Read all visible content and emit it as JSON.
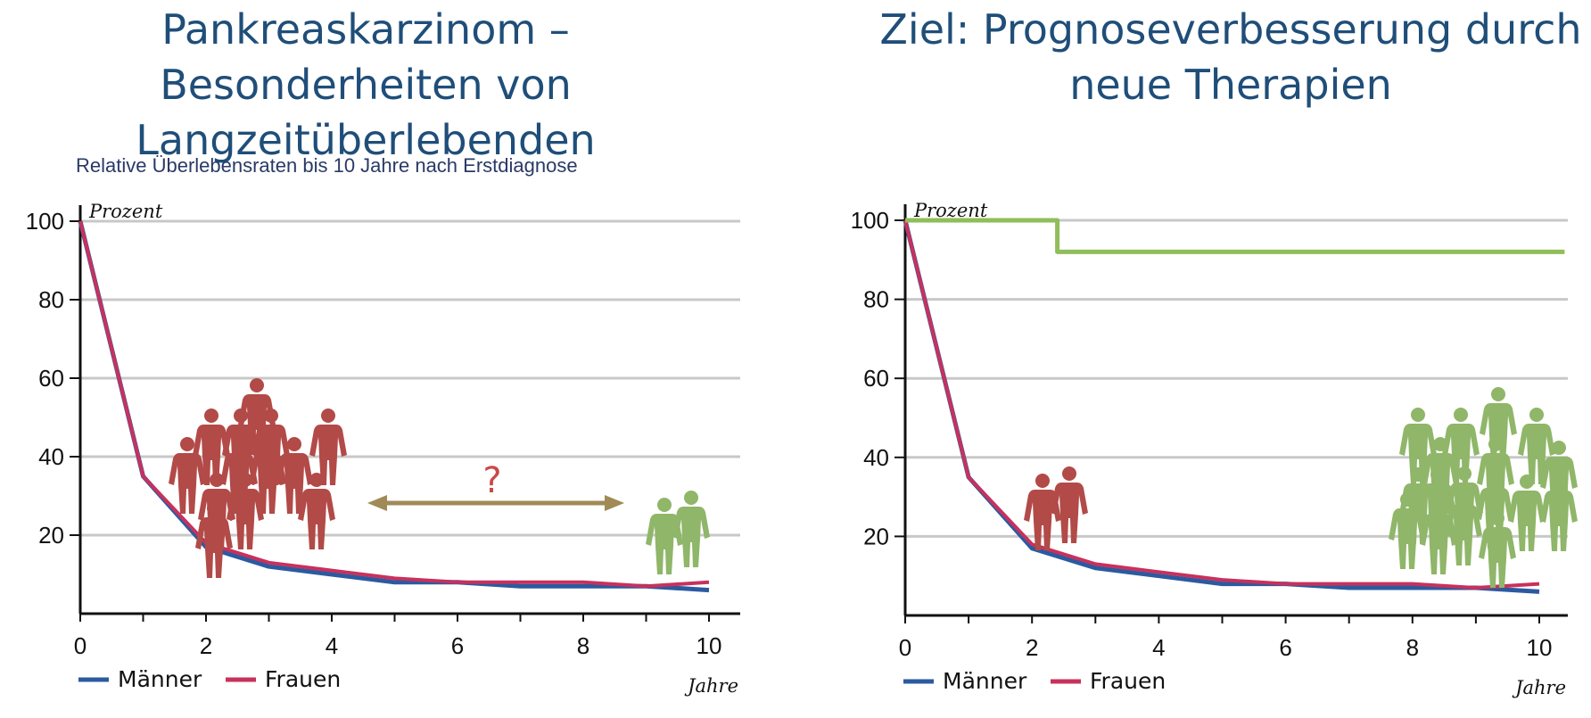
{
  "slide": {
    "left_title": "Pankreaskarzinom – Besonderheiten von Langzeitüberlebenden",
    "right_title": "Ziel: Prognoseverbesserung durch neue Therapien",
    "subtitle": "Relative Überlebensraten bis 10 Jahre nach Erstdiagnose",
    "question_mark": "?"
  },
  "colors": {
    "title": "#1f4e79",
    "maenner": "#2c5aa0",
    "frauen": "#c8315c",
    "goal": "#8fbe5a",
    "people_red": "#b24a48",
    "people_green": "#8fb669",
    "arrow": "#a08a55",
    "question": "#c84a48",
    "grid": "#c8c8c8"
  },
  "chart_data": [
    {
      "type": "line",
      "xlabel": "Jahre",
      "ylabel": "Prozent",
      "xlim": [
        0,
        10
      ],
      "ylim": [
        0,
        100
      ],
      "xticks": [
        "0",
        "2",
        "4",
        "6",
        "8",
        "10"
      ],
      "yticks": [
        "20",
        "40",
        "60",
        "80",
        "100"
      ],
      "grid": true,
      "legend": "bottom-left",
      "series": [
        {
          "name": "Männer",
          "x": [
            0,
            1,
            2,
            3,
            4,
            5,
            6,
            7,
            8,
            9,
            10
          ],
          "y": [
            100,
            35,
            17,
            12,
            10,
            8,
            8,
            7,
            7,
            7,
            6
          ]
        },
        {
          "name": "Frauen",
          "x": [
            0,
            1,
            2,
            3,
            4,
            5,
            6,
            7,
            8,
            9,
            10
          ],
          "y": [
            100,
            35,
            18,
            13,
            11,
            9,
            8,
            8,
            8,
            7,
            8
          ]
        }
      ],
      "annotations": [
        {
          "type": "double-arrow",
          "text": "?"
        },
        {
          "type": "people-icons-red",
          "count": 13
        },
        {
          "type": "people-icons-green",
          "count": 2
        }
      ]
    },
    {
      "type": "line",
      "xlabel": "Jahre",
      "ylabel": "Prozent",
      "xlim": [
        0,
        10
      ],
      "ylim": [
        0,
        100
      ],
      "xticks": [
        "0",
        "2",
        "4",
        "6",
        "8",
        "10"
      ],
      "yticks": [
        "20",
        "40",
        "60",
        "80",
        "100"
      ],
      "grid": true,
      "legend": "bottom-left",
      "series": [
        {
          "name": "Männer",
          "x": [
            0,
            1,
            2,
            3,
            4,
            5,
            6,
            7,
            8,
            9,
            10
          ],
          "y": [
            100,
            35,
            17,
            12,
            10,
            8,
            8,
            7,
            7,
            7,
            6
          ]
        },
        {
          "name": "Frauen",
          "x": [
            0,
            1,
            2,
            3,
            4,
            5,
            6,
            7,
            8,
            9,
            10
          ],
          "y": [
            100,
            35,
            18,
            13,
            11,
            9,
            8,
            8,
            8,
            7,
            8
          ]
        },
        {
          "step": true,
          "x": [
            0,
            2.4,
            2.4,
            10.4
          ],
          "y": [
            100,
            100,
            92,
            92
          ]
        }
      ],
      "annotations": [
        {
          "type": "people-icons-red",
          "count": 2
        },
        {
          "type": "people-icons-green",
          "count": 17
        }
      ]
    }
  ]
}
